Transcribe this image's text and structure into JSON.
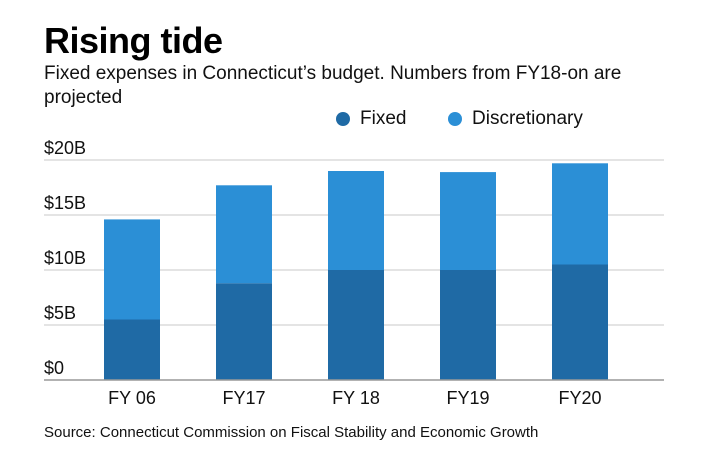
{
  "header": {
    "title": "Rising tide",
    "subtitle": "Fixed expenses in Connecticut’s budget. Numbers from FY18-on are projected"
  },
  "footer": {
    "source": "Source: Connecticut Commission on Fiscal Stability and Economic Growth"
  },
  "colors": {
    "fixed": "#1f6aa5",
    "discretionary": "#2b8fd6",
    "grid": "#c8c8c8",
    "axis": "#999999"
  },
  "chart_data": {
    "type": "bar",
    "stacked": true,
    "title": "Rising tide",
    "subtitle": "Fixed expenses in Connecticut’s budget. Numbers from FY18-on are projected",
    "categories": [
      "FY 06",
      "FY17",
      "FY 18",
      "FY19",
      "FY20"
    ],
    "series": [
      {
        "name": "Fixed",
        "values": [
          5.5,
          8.8,
          10.0,
          10.0,
          10.5
        ]
      },
      {
        "name": "Discretionary",
        "values": [
          9.1,
          8.9,
          9.0,
          8.9,
          9.2
        ]
      }
    ],
    "ylim": [
      0,
      20
    ],
    "yticks": [
      {
        "value": 20,
        "label": "$20B"
      },
      {
        "value": 15,
        "label": "$15B"
      },
      {
        "value": 10,
        "label": "$10B"
      },
      {
        "value": 5,
        "label": "$5B"
      },
      {
        "value": 0,
        "label": "$0"
      }
    ],
    "grid": true,
    "legend_position": "top-right",
    "xlabel": "",
    "ylabel": ""
  }
}
